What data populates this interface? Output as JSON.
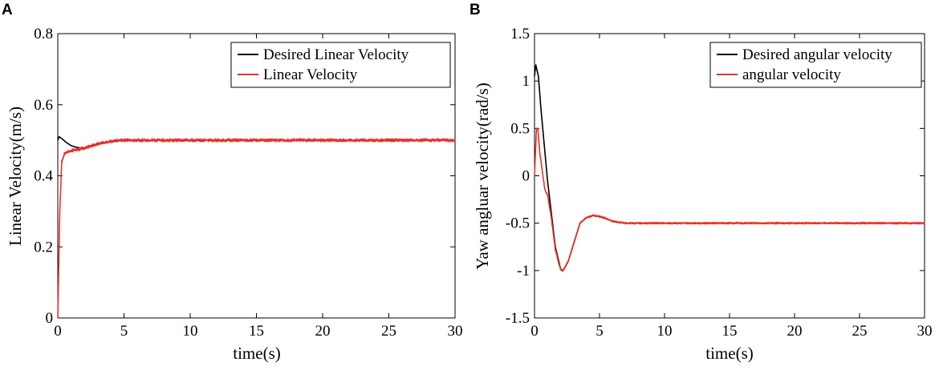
{
  "chart_data": [
    {
      "type": "line",
      "panel": "A",
      "title": "",
      "xlabel": "time(s)",
      "ylabel": "Linear Velocity(m/s)",
      "xlim": [
        0,
        30
      ],
      "ylim": [
        0,
        0.8
      ],
      "xticks": [
        0,
        5,
        10,
        15,
        20,
        25,
        30
      ],
      "yticks": [
        0,
        0.2,
        0.4,
        0.6,
        0.8
      ],
      "ytick_labels": [
        "0",
        "0.2",
        "0.4",
        "0.6",
        "0.8"
      ],
      "legend_position": "top-right",
      "series": [
        {
          "name": "Desired Linear Velocity",
          "color": "#000000",
          "noise": 0,
          "x": [
            0,
            0.1,
            0.3,
            0.6,
            1.0,
            1.4,
            1.8,
            2.5,
            3.2,
            4.0,
            5.0,
            7.0,
            10.0,
            30.0
          ],
          "y": [
            0.5,
            0.51,
            0.505,
            0.495,
            0.485,
            0.48,
            0.478,
            0.482,
            0.49,
            0.496,
            0.5,
            0.5,
            0.5,
            0.5
          ]
        },
        {
          "name": "Linear Velocity",
          "color": "#e8312a",
          "noise": 0.004,
          "x": [
            0,
            0.15,
            0.3,
            0.5,
            0.8,
            1.2,
            1.6,
            2.0,
            2.5,
            3.0,
            3.5,
            4.0,
            5.0,
            7.0,
            30.0
          ],
          "y": [
            0,
            0.3,
            0.44,
            0.462,
            0.468,
            0.472,
            0.475,
            0.478,
            0.484,
            0.49,
            0.494,
            0.497,
            0.5,
            0.5,
            0.5
          ]
        }
      ]
    },
    {
      "type": "line",
      "panel": "B",
      "title": "",
      "xlabel": "time(s)",
      "ylabel": "Yaw angluar velocity(rad/s)",
      "xlim": [
        0,
        30
      ],
      "ylim": [
        -1.5,
        1.5
      ],
      "xticks": [
        0,
        5,
        10,
        15,
        20,
        25,
        30
      ],
      "yticks": [
        -1.5,
        -1,
        -0.5,
        0,
        0.5,
        1,
        1.5
      ],
      "ytick_labels": [
        "-1.5",
        "-1",
        "-0.5",
        "0",
        "0.5",
        "1",
        "1.5"
      ],
      "legend_position": "top-right",
      "series": [
        {
          "name": "Desired angular velocity",
          "color": "#000000",
          "noise": 0,
          "x": [
            0,
            0.1,
            0.3,
            0.5,
            0.8,
            1.0,
            1.3,
            1.6,
            2.0,
            2.2,
            2.6,
            3.0,
            3.5,
            4.0,
            4.5,
            5.0,
            5.5,
            6.0,
            7.0,
            8.0,
            30.0
          ],
          "y": [
            1.05,
            1.17,
            1.05,
            0.7,
            0.25,
            -0.05,
            -0.4,
            -0.75,
            -0.98,
            -1.0,
            -0.9,
            -0.72,
            -0.5,
            -0.44,
            -0.42,
            -0.43,
            -0.45,
            -0.48,
            -0.5,
            -0.5,
            -0.5
          ]
        },
        {
          "name": "angular velocity",
          "color": "#e8312a",
          "noise": 0.008,
          "x": [
            0,
            0.15,
            0.25,
            0.4,
            0.6,
            0.8,
            0.9,
            1.0,
            1.3,
            1.6,
            2.0,
            2.2,
            2.6,
            3.0,
            3.5,
            4.0,
            4.5,
            5.0,
            5.5,
            6.0,
            7.0,
            8.0,
            30.0
          ],
          "y": [
            0,
            0.5,
            0.5,
            0.25,
            0.05,
            -0.15,
            -0.18,
            -0.2,
            -0.45,
            -0.78,
            -0.99,
            -1.0,
            -0.9,
            -0.72,
            -0.5,
            -0.44,
            -0.42,
            -0.43,
            -0.45,
            -0.48,
            -0.5,
            -0.5,
            -0.5
          ]
        }
      ]
    }
  ]
}
